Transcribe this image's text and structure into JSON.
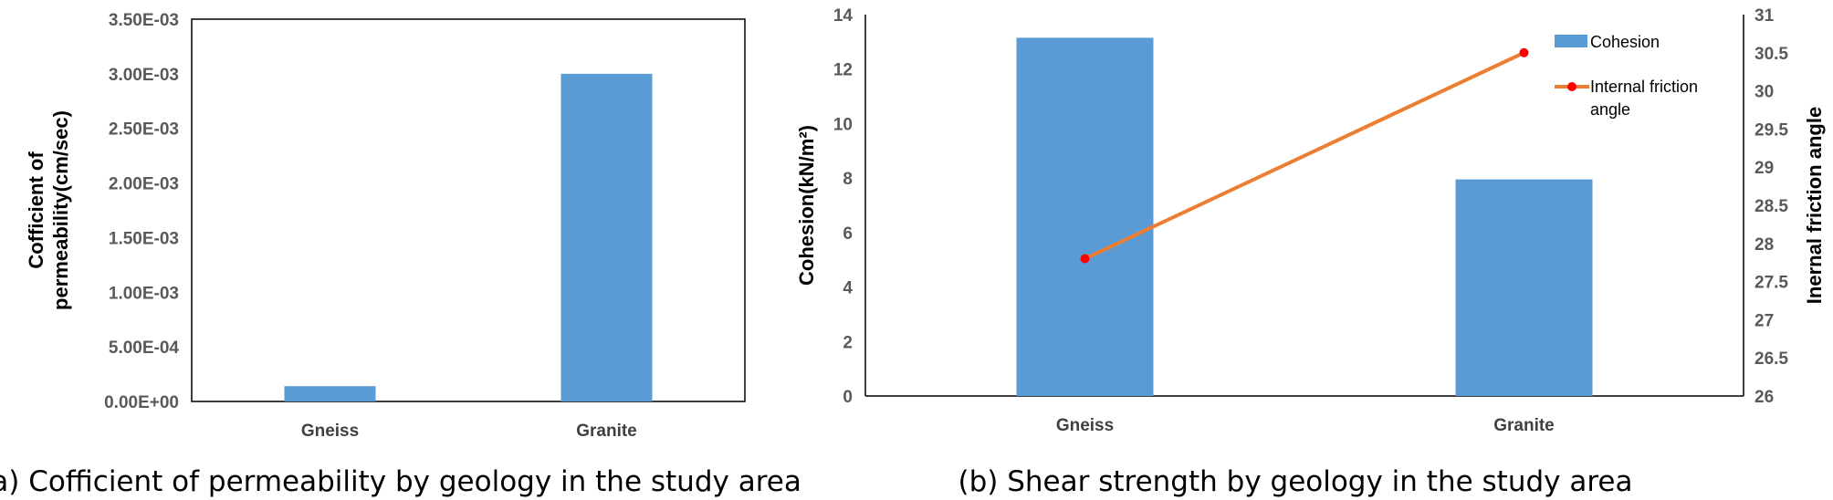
{
  "chart_data": [
    {
      "type": "bar",
      "caption": "(a) Cofficient of permeability by geology in the study area",
      "categories": [
        "Gneiss",
        "Granite"
      ],
      "values": [
        0.00014,
        0.003
      ],
      "ylabel_lines": [
        "Cofficient of",
        "permeability(cm/sec)"
      ],
      "ylim": [
        0,
        0.0035
      ],
      "yticks": [
        "0.00E+00",
        "5.00E-04",
        "1.00E-03",
        "1.50E-03",
        "2.00E-03",
        "2.50E-03",
        "3.00E-03",
        "3.50E-03"
      ],
      "grid": false,
      "bar_color": "#5b9bd5"
    },
    {
      "type": "bar",
      "caption": "(b) Shear strength by geology in the study area",
      "categories": [
        "Gneiss",
        "Granite"
      ],
      "series": [
        {
          "name": "Cohesion",
          "type": "bar",
          "axis": "left",
          "values": [
            13.15,
            7.95
          ],
          "color": "#5b9bd5"
        },
        {
          "name": "Internal friction angle",
          "type": "line",
          "axis": "right",
          "values": [
            27.8,
            30.5
          ],
          "color": "#ed7d31",
          "marker_color": "#ff0000"
        }
      ],
      "ylabel_left": "Cohesion(kN/m²)",
      "ylabel_right": "Inernal friction angle",
      "ylim_left": [
        0,
        14
      ],
      "ylim_right": [
        26,
        31
      ],
      "yticks_left": [
        "0",
        "2",
        "4",
        "6",
        "8",
        "10",
        "12",
        "14"
      ],
      "yticks_right": [
        "26",
        "26.5",
        "27",
        "27.5",
        "28",
        "28.5",
        "29",
        "29.5",
        "30",
        "30.5",
        "31"
      ],
      "legend_lines": [
        [
          "Cohesion"
        ],
        [
          "Internal friction",
          "angle"
        ]
      ],
      "legend_position": "top-right",
      "grid": false
    }
  ]
}
